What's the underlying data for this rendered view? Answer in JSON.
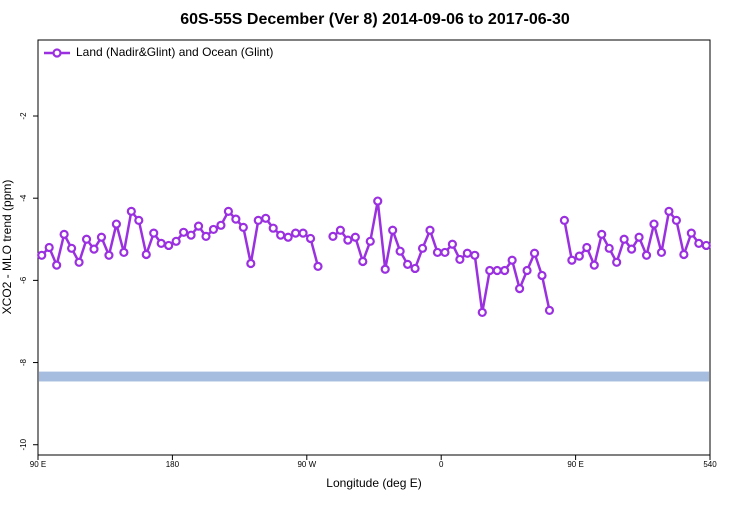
{
  "chart_data": {
    "type": "line",
    "title": "60S-55S December (Ver 8)   2014-09-06 to 2017-06-30",
    "xlabel": "Longitude (deg E)",
    "ylabel": "XCO2 - MLO trend (ppm)",
    "xlim": [
      90,
      540
    ],
    "xticks": [
      {
        "value": 90,
        "label": "90 E"
      },
      180,
      {
        "value": 270,
        "label": "90 W"
      },
      {
        "value": 360,
        "label": "0"
      },
      {
        "value": 450,
        "label": "90 E"
      },
      540
    ],
    "ylim": [
      -10.25,
      -0.15
    ],
    "yticks": [
      -2,
      -4,
      -6,
      -8,
      -10
    ],
    "legend": "top-left",
    "x": [
      92.5,
      97.5,
      102.5,
      107.5,
      112.5,
      117.5,
      122.5,
      127.5,
      132.5,
      137.5,
      142.5,
      147.5,
      152.5,
      157.5,
      162.5,
      167.5,
      172.5,
      177.5,
      182.5,
      187.5,
      192.5,
      197.5,
      202.5,
      207.5,
      212.5,
      217.5,
      222.5,
      227.5,
      232.5,
      237.5,
      242.5,
      247.5,
      252.5,
      257.5,
      262.5,
      267.5,
      272.5,
      277.5,
      282.5,
      287.5,
      292.5,
      297.5,
      302.5,
      307.5,
      312.5,
      317.5,
      322.5,
      327.5,
      332.5,
      337.5,
      342.5,
      347.5,
      352.5,
      357.5,
      362.5,
      367.5,
      372.5,
      377.5,
      382.5,
      387.5,
      392.5,
      397.5,
      402.5,
      407.5,
      412.5,
      417.5,
      422.5,
      427.5,
      432.5,
      437.5,
      442.5,
      447.5,
      452.5,
      457.5,
      462.5,
      467.5,
      472.5,
      477.5,
      482.5,
      487.5,
      492.5,
      497.5,
      502.5,
      507.5,
      512.5,
      517.5,
      522.5,
      527.5,
      532.5,
      537.5
    ],
    "series": [
      {
        "name": "Land (Nadir&Glint) and Ocean (Glint)",
        "color": "#9b30e0",
        "values": [
          -5.39,
          -5.2,
          -5.63,
          -4.88,
          -5.22,
          -5.56,
          -5.0,
          -5.24,
          -4.95,
          -5.39,
          -4.63,
          -5.32,
          -4.32,
          -4.54,
          -5.37,
          -4.85,
          -5.1,
          -5.15,
          -5.05,
          -4.83,
          -4.9,
          -4.68,
          -4.93,
          -4.76,
          -4.66,
          -4.32,
          -4.51,
          -4.71,
          -5.59,
          -4.54,
          -4.49,
          -4.73,
          -4.9,
          -4.95,
          -4.85,
          -4.85,
          -4.98,
          -5.66,
          null,
          -4.93,
          -4.78,
          -5.02,
          -4.95,
          -5.54,
          -5.05,
          -4.07,
          -5.73,
          -4.78,
          -5.29,
          -5.61,
          -5.71,
          -5.22,
          -4.78,
          -5.32,
          -5.32,
          -5.12,
          -5.49,
          -5.34,
          -5.39,
          -6.78,
          -5.76,
          -5.76,
          -5.76,
          -5.51,
          -6.2,
          -5.76,
          -5.34,
          -5.88,
          -6.73,
          null,
          -4.54,
          -5.51,
          -5.41,
          -5.2,
          -5.63,
          -4.88,
          -5.22,
          -5.56,
          -5.0,
          -5.24,
          -4.95,
          -5.39,
          -4.63,
          -5.32,
          -4.32,
          -4.54,
          -5.37,
          -4.85,
          -5.1,
          -5.15
        ]
      }
    ],
    "band": {
      "color": "#a6bddf",
      "values": [
        -8.22,
        -8.46
      ]
    }
  }
}
